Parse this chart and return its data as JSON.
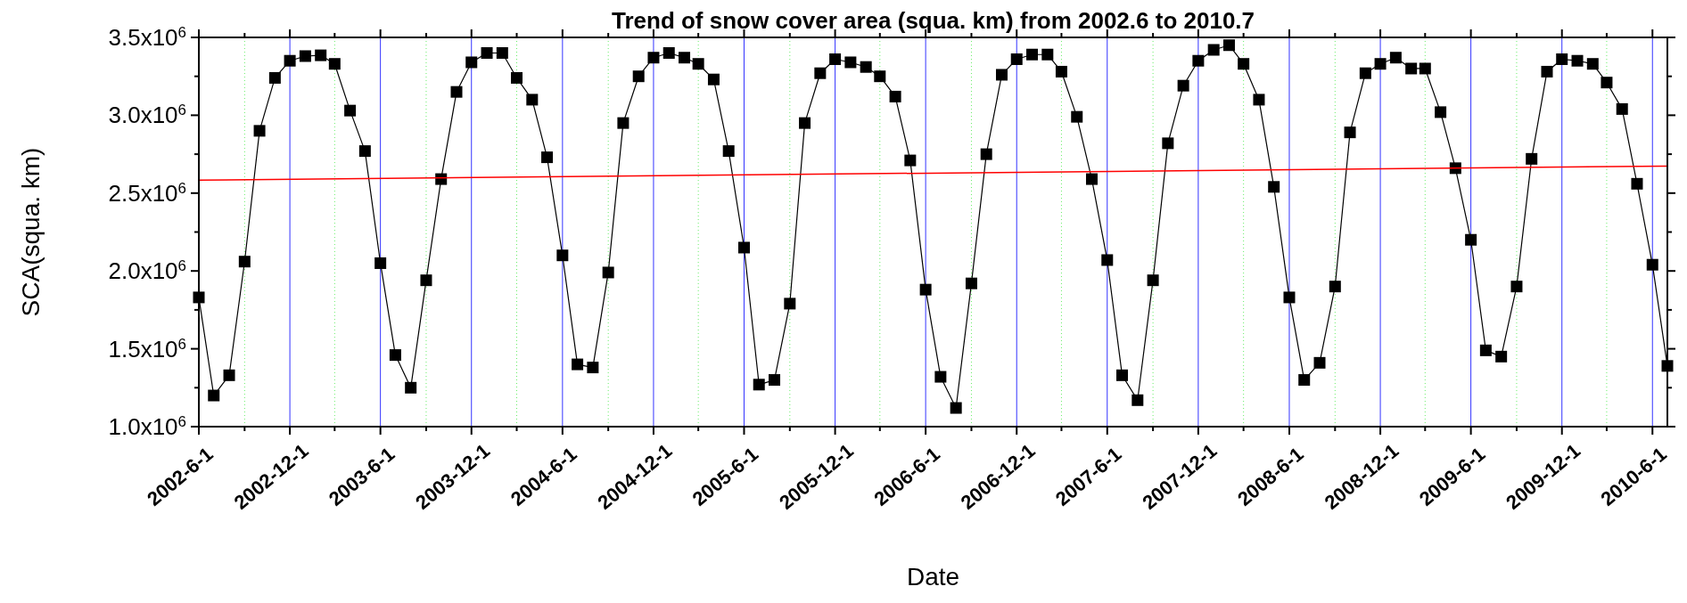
{
  "chart_data": {
    "type": "line",
    "title": "Trend of snow cover area (squa. km) from 2002.6 to 2010.7",
    "xlabel": "Date",
    "ylabel": "SCA(squa. km)",
    "x": [
      "2002-06-01",
      "2002-07-01",
      "2002-08-01",
      "2002-09-01",
      "2002-10-01",
      "2002-11-01",
      "2002-12-01",
      "2003-01-01",
      "2003-02-01",
      "2003-03-01",
      "2003-04-01",
      "2003-05-01",
      "2003-06-01",
      "2003-07-01",
      "2003-08-01",
      "2003-09-01",
      "2003-10-01",
      "2003-11-01",
      "2003-12-01",
      "2004-01-01",
      "2004-02-01",
      "2004-03-01",
      "2004-04-01",
      "2004-05-01",
      "2004-06-01",
      "2004-07-01",
      "2004-08-01",
      "2004-09-01",
      "2004-10-01",
      "2004-11-01",
      "2004-12-01",
      "2005-01-01",
      "2005-02-01",
      "2005-03-01",
      "2005-04-01",
      "2005-05-01",
      "2005-06-01",
      "2005-07-01",
      "2005-08-01",
      "2005-09-01",
      "2005-10-01",
      "2005-11-01",
      "2005-12-01",
      "2006-01-01",
      "2006-02-01",
      "2006-03-01",
      "2006-04-01",
      "2006-05-01",
      "2006-06-01",
      "2006-07-01",
      "2006-08-01",
      "2006-09-01",
      "2006-10-01",
      "2006-11-01",
      "2006-12-01",
      "2007-01-01",
      "2007-02-01",
      "2007-03-01",
      "2007-04-01",
      "2007-05-01",
      "2007-06-01",
      "2007-07-01",
      "2007-08-01",
      "2007-09-01",
      "2007-10-01",
      "2007-11-01",
      "2007-12-01",
      "2008-01-01",
      "2008-02-01",
      "2008-03-01",
      "2008-04-01",
      "2008-05-01",
      "2008-06-01",
      "2008-07-01",
      "2008-08-01",
      "2008-09-01",
      "2008-10-01",
      "2008-11-01",
      "2008-12-01",
      "2009-01-01",
      "2009-02-01",
      "2009-03-01",
      "2009-04-01",
      "2009-05-01",
      "2009-06-01",
      "2009-07-01",
      "2009-08-01",
      "2009-09-01",
      "2009-10-01",
      "2009-11-01",
      "2009-12-01",
      "2010-01-01",
      "2010-02-01",
      "2010-03-01",
      "2010-04-01",
      "2010-05-01",
      "2010-06-01",
      "2010-07-01"
    ],
    "series": [
      {
        "color": "#000000",
        "marker": "square",
        "values": [
          1830000,
          1200000,
          1330000,
          2060000,
          2900000,
          3240000,
          3350000,
          3380000,
          3385000,
          3330000,
          3030000,
          2770000,
          2050000,
          1460000,
          1250000,
          1940000,
          2590000,
          3150000,
          3340000,
          3400000,
          3400000,
          3240000,
          3100000,
          2730000,
          2100000,
          1400000,
          1380000,
          1990000,
          2950000,
          3250000,
          3370000,
          3400000,
          3370000,
          3330000,
          3230000,
          2770000,
          2150000,
          1270000,
          1300000,
          1790000,
          2950000,
          3270000,
          3360000,
          3340000,
          3310000,
          3250000,
          3120000,
          2710000,
          1880000,
          1320000,
          1120000,
          1920000,
          2750000,
          3260000,
          3360000,
          3390000,
          3390000,
          3280000,
          2990000,
          2590000,
          2070000,
          1330000,
          1170000,
          1940000,
          2820000,
          3190000,
          3350000,
          3420000,
          3450000,
          3330000,
          3100000,
          2540000,
          1830000,
          1300000,
          1410000,
          1900000,
          2890000,
          3270000,
          3330000,
          3370000,
          3300000,
          3300000,
          3020000,
          2660000,
          2200000,
          1490000,
          1450000,
          1900000,
          2720000,
          3280000,
          3360000,
          3350000,
          3330000,
          3210000,
          3040000,
          2560000,
          2040000,
          1390000
        ]
      },
      {
        "type": "line",
        "color": "#ff0000",
        "marker": "none",
        "x": [
          "2002-06-01",
          "2010-07-01"
        ],
        "values": [
          2583000,
          2674000
        ]
      }
    ],
    "xlim": [
      "2002-06-01",
      "2010-07-01"
    ],
    "xticks": [
      {
        "value": "2002-06-01",
        "label": "2002-6-1"
      },
      {
        "value": "2002-09-01",
        "label": null
      },
      {
        "value": "2002-12-01",
        "label": "2002-12-1"
      },
      {
        "value": "2003-03-01",
        "label": null
      },
      {
        "value": "2003-06-01",
        "label": "2003-6-1"
      },
      {
        "value": "2003-09-01",
        "label": null
      },
      {
        "value": "2003-12-01",
        "label": "2003-12-1"
      },
      {
        "value": "2004-03-01",
        "label": null
      },
      {
        "value": "2004-06-01",
        "label": "2004-6-1"
      },
      {
        "value": "2004-09-01",
        "label": null
      },
      {
        "value": "2004-12-01",
        "label": "2004-12-1"
      },
      {
        "value": "2005-03-01",
        "label": null
      },
      {
        "value": "2005-06-01",
        "label": "2005-6-1"
      },
      {
        "value": "2005-09-01",
        "label": null
      },
      {
        "value": "2005-12-01",
        "label": "2005-12-1"
      },
      {
        "value": "2006-03-01",
        "label": null
      },
      {
        "value": "2006-06-01",
        "label": "2006-6-1"
      },
      {
        "value": "2006-09-01",
        "label": null
      },
      {
        "value": "2006-12-01",
        "label": "2006-12-1"
      },
      {
        "value": "2007-03-01",
        "label": null
      },
      {
        "value": "2007-06-01",
        "label": "2007-6-1"
      },
      {
        "value": "2007-09-01",
        "label": null
      },
      {
        "value": "2007-12-01",
        "label": "2007-12-1"
      },
      {
        "value": "2008-03-01",
        "label": null
      },
      {
        "value": "2008-06-01",
        "label": "2008-6-1"
      },
      {
        "value": "2008-09-01",
        "label": null
      },
      {
        "value": "2008-12-01",
        "label": "2008-12-1"
      },
      {
        "value": "2009-03-01",
        "label": null
      },
      {
        "value": "2009-06-01",
        "label": "2009-6-1"
      },
      {
        "value": "2009-09-01",
        "label": null
      },
      {
        "value": "2009-12-01",
        "label": "2009-12-1"
      },
      {
        "value": "2010-03-01",
        "label": null
      },
      {
        "value": "2010-06-01",
        "label": "2010-6-1"
      }
    ],
    "ylim": [
      1000000,
      3500000
    ],
    "yticks": [
      {
        "value": 1000000,
        "label": "1.0x10$^{6}$"
      },
      {
        "value": 1250000,
        "label": null
      },
      {
        "value": 1500000,
        "label": "1.5x10$^{6}$"
      },
      {
        "value": 1750000,
        "label": null
      },
      {
        "value": 2000000,
        "label": "2.0x10$^{6}$"
      },
      {
        "value": 2250000,
        "label": null
      },
      {
        "value": 2500000,
        "label": "2.5x10$^{6}$"
      },
      {
        "value": 2750000,
        "label": null
      },
      {
        "value": 3000000,
        "label": "3.0x10$^{6}$"
      },
      {
        "value": 3250000,
        "label": null
      },
      {
        "value": 3500000,
        "label": "3.5x10$^{6}$"
      }
    ],
    "grid": "x",
    "line_style": "solid"
  }
}
